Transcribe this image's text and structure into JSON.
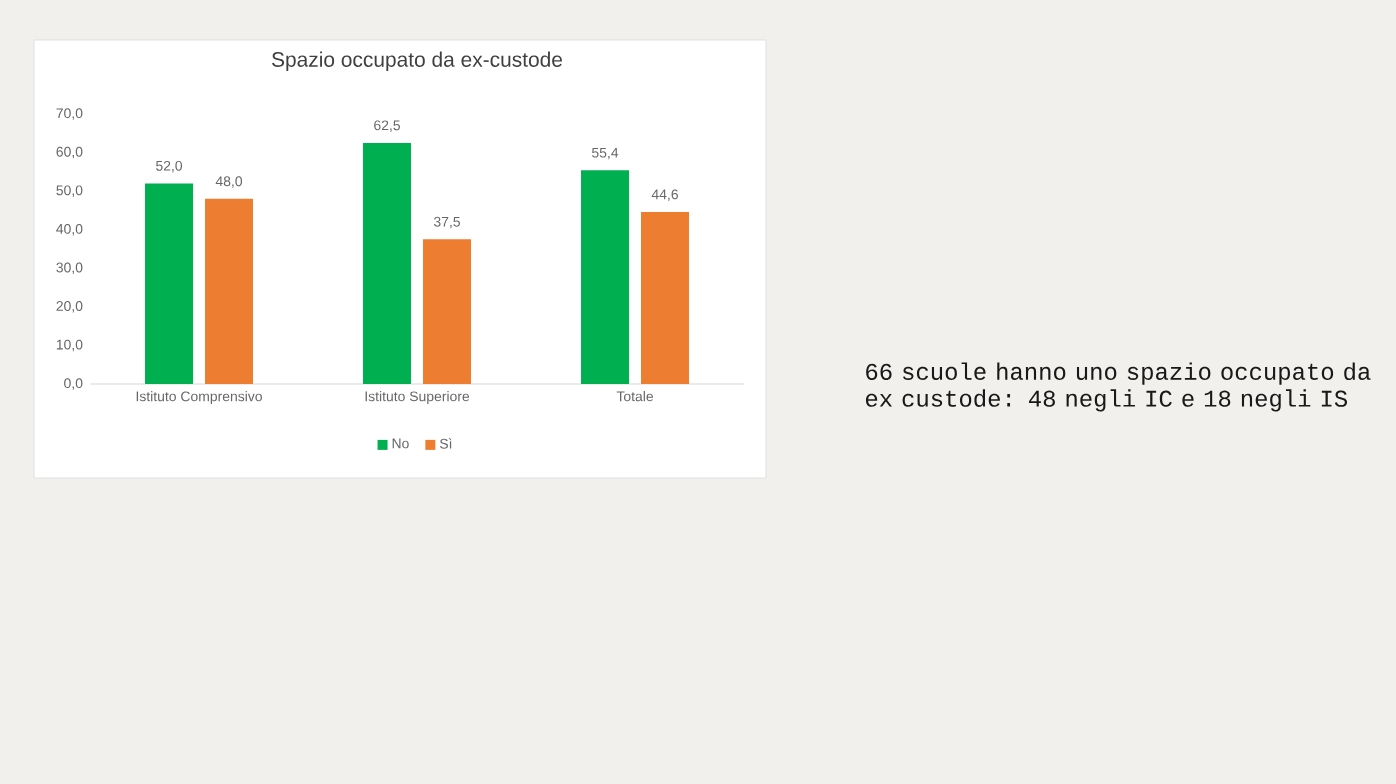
{
  "chart_data": {
    "type": "bar",
    "title": "Spazio occupato da ex-custode",
    "categories": [
      "Istituto Comprensivo",
      "Istituto Superiore",
      "Totale"
    ],
    "series": [
      {
        "name": "No",
        "color": "#00b050",
        "values": [
          52.0,
          62.5,
          55.4
        ],
        "value_labels": [
          "52,0",
          "62,5",
          "55,4"
        ]
      },
      {
        "name": "Sì",
        "color": "#ed7d31",
        "values": [
          48.0,
          37.5,
          44.6
        ],
        "value_labels": [
          "48,0",
          "37,5",
          "44,6"
        ]
      }
    ],
    "ylim": [
      0,
      70
    ],
    "yticks": [
      {
        "value": 0,
        "label": "0,0"
      },
      {
        "value": 10,
        "label": "10,0"
      },
      {
        "value": 20,
        "label": "20,0"
      },
      {
        "value": 30,
        "label": "30,0"
      },
      {
        "value": 40,
        "label": "40,0"
      },
      {
        "value": 50,
        "label": "50,0"
      },
      {
        "value": 60,
        "label": "60,0"
      },
      {
        "value": 70,
        "label": "70,0"
      }
    ],
    "legend": "bottom",
    "annotations": [
      "66 scuole hanno uno spazio occupato da ex custode: 48 negli IC e 18 negli IS"
    ]
  }
}
